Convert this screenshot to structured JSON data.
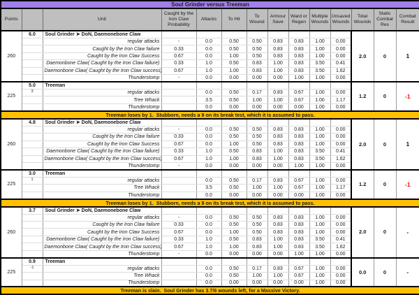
{
  "title": "Soul Grinder versus Treeman",
  "columns": [
    "Points",
    "",
    "Unit",
    "Caught by the Iron Claw Probability",
    "Attacks",
    "To Hit",
    "To Wound",
    "Armour Save",
    "Ward or Regen",
    "Multiple Wounds",
    "Unsaved Wounds",
    "Total Wounds",
    "Static Combat Res",
    "Combat Result"
  ],
  "colors": {
    "title_bg": "#a07fe8",
    "header_bg": "#bfbfbf",
    "banner_bg": "#ffc000",
    "negative": "#ff0000"
  },
  "rounds": [
    {
      "blocks": [
        {
          "points": "260",
          "expected_wounds": "6.0",
          "unit": "Soul Grinder ➤ DoN, Daemonebone Claw",
          "rows": [
            {
              "label": "regular attacks",
              "prob": "-",
              "values": [
                "0.0",
                "0.50",
                "0.50",
                "0.83",
                "0.83",
                "1.00",
                "0.00"
              ]
            },
            {
              "label": "Caught by the Iron Claw failure",
              "prob": "0.33",
              "values": [
                "0.0",
                "0.50",
                "0.50",
                "0.83",
                "0.83",
                "1.00",
                "0.00"
              ]
            },
            {
              "label": "Caught by the Iron Claw Success",
              "prob": "0.67",
              "values": [
                "0.0",
                "1.00",
                "0.50",
                "0.83",
                "0.83",
                "1.00",
                "0.00"
              ]
            },
            {
              "label": "Daemonbone Claw( Caught by the Iron Claw failure)",
              "prob": "0.33",
              "values": [
                "1.0",
                "0.50",
                "0.83",
                "1.00",
                "0.83",
                "3.50",
                "0.41"
              ]
            },
            {
              "label": "Daemonbone Claw( Caught by the Iron Claw success)",
              "prob": "0.67",
              "values": [
                "1.0",
                "1.00",
                "0.83",
                "1.00",
                "0.83",
                "3.50",
                "1.62"
              ]
            },
            {
              "label": "Thunderstomp",
              "prob": "-",
              "values": [
                "0.0",
                "0.00",
                "0.00",
                "0.00",
                "1.00",
                "1.00",
                "0.00"
              ]
            }
          ],
          "total_wounds": "2.0",
          "static_res": "0",
          "combat_result": "1",
          "result_negative": false
        },
        {
          "points": "225",
          "expected_wounds": "5.0",
          "unit": "Treeman",
          "rows": [
            {
              "label": "regular attacks",
              "note": "3",
              "values": [
                "0.0",
                "0.50",
                "0.17",
                "0.83",
                "0.67",
                "1.00",
                "0.00"
              ]
            },
            {
              "label": "Tree Whack",
              "values": [
                "3.5",
                "0.50",
                "1.00",
                "1.00",
                "0.67",
                "1.00",
                "1.17"
              ]
            },
            {
              "label": "Thunderstomp",
              "values": [
                "0.0",
                "0.00",
                "0.00",
                "0.00",
                "0.00",
                "1.00",
                "0.00"
              ]
            }
          ],
          "total_wounds": "1.2",
          "static_res": "0",
          "combat_result": "-1",
          "result_negative": true
        }
      ],
      "banner": "Treeman loses by 1.  Stubborn, needs a 9 on its break test, which it is assumed to pass."
    },
    {
      "blocks": [
        {
          "points": "260",
          "expected_wounds": "4.8",
          "unit": "Soul Grinder ➤ DoN, Daemonebone Claw",
          "rows": [
            {
              "label": "regular attacks",
              "prob": "-",
              "values": [
                "0.0",
                "0.50",
                "0.50",
                "0.83",
                "0.83",
                "1.00",
                "0.00"
              ]
            },
            {
              "label": "Caught by the Iron Claw failure",
              "prob": "0.33",
              "values": [
                "0.0",
                "0.50",
                "0.50",
                "0.83",
                "0.83",
                "1.00",
                "0.00"
              ]
            },
            {
              "label": "Caught by the Iron Claw Success",
              "prob": "0.67",
              "values": [
                "0.0",
                "1.00",
                "0.50",
                "0.83",
                "0.83",
                "1.00",
                "0.00"
              ]
            },
            {
              "label": "Daemonbone Claw( Caught by the Iron Claw failure)",
              "prob": "0.33",
              "values": [
                "1.0",
                "0.50",
                "0.83",
                "1.00",
                "0.83",
                "3.50",
                "0.41"
              ]
            },
            {
              "label": "Daemonbone Claw( Caught by the Iron Claw success)",
              "prob": "0.67",
              "values": [
                "1.0",
                "1.00",
                "0.83",
                "1.00",
                "0.83",
                "3.50",
                "1.62"
              ]
            },
            {
              "label": "Thunderstomp",
              "prob": "-",
              "values": [
                "0.0",
                "0.00",
                "0.00",
                "0.00",
                "1.00",
                "1.00",
                "0.00"
              ]
            }
          ],
          "total_wounds": "2.0",
          "static_res": "0",
          "combat_result": "1",
          "result_negative": false
        },
        {
          "points": "225",
          "expected_wounds": "3.0",
          "unit": "Treeman",
          "rows": [
            {
              "label": "regular attacks",
              "note": "1",
              "values": [
                "0.0",
                "0.50",
                "0.17",
                "0.83",
                "0.67",
                "1.00",
                "0.00"
              ]
            },
            {
              "label": "Tree Whack",
              "values": [
                "3.5",
                "0.50",
                "1.00",
                "1.00",
                "0.67",
                "1.00",
                "1.17"
              ]
            },
            {
              "label": "Thunderstomp",
              "values": [
                "0.0",
                "0.00",
                "0.00",
                "0.00",
                "0.00",
                "1.00",
                "0.00"
              ]
            }
          ],
          "total_wounds": "1.2",
          "static_res": "0",
          "combat_result": "-1",
          "result_negative": true
        }
      ],
      "banner": "Treeman loses by 1.  Stubborn, needs a 9 on its break test, which it is assumed to pass."
    },
    {
      "blocks": [
        {
          "points": "260",
          "expected_wounds": "3.7",
          "unit": "Soul Grinder ➤ DoN, Daemonebone Claw",
          "rows": [
            {
              "label": "regular attacks",
              "prob": "-",
              "values": [
                "0.0",
                "0.50",
                "0.50",
                "0.83",
                "0.83",
                "1.00",
                "0.00"
              ]
            },
            {
              "label": "Caught by the Iron Claw failure",
              "prob": "0.33",
              "values": [
                "0.0",
                "0.50",
                "0.50",
                "0.83",
                "0.83",
                "1.00",
                "0.00"
              ]
            },
            {
              "label": "Caught by the Iron Claw Success",
              "prob": "0.67",
              "values": [
                "0.0",
                "1.00",
                "0.50",
                "0.83",
                "0.83",
                "1.00",
                "0.00"
              ]
            },
            {
              "label": "Daemonbone Claw( Caught by the Iron Claw failure)",
              "prob": "0.33",
              "values": [
                "1.0",
                "0.50",
                "0.83",
                "1.00",
                "0.83",
                "3.50",
                "0.41"
              ]
            },
            {
              "label": "Daemonbone Claw( Caught by the Iron Claw success)",
              "prob": "0.67",
              "values": [
                "1.0",
                "1.00",
                "0.83",
                "1.00",
                "0.83",
                "3.50",
                "1.62"
              ]
            },
            {
              "label": "Thunderstomp",
              "prob": "-",
              "values": [
                "0.0",
                "0.00",
                "0.00",
                "0.00",
                "1.00",
                "1.00",
                "0.00"
              ]
            }
          ],
          "total_wounds": "2.0",
          "static_res": "0",
          "combat_result": "-",
          "result_negative": false
        },
        {
          "points": "225",
          "expected_wounds": "0.9",
          "unit": "Treeman",
          "rows": [
            {
              "label": "regular attacks",
              "note": "-1",
              "values": [
                "0.0",
                "0.50",
                "0.17",
                "0.83",
                "0.67",
                "1.00",
                "0.00"
              ]
            },
            {
              "label": "Tree Whack",
              "values": [
                "0.0",
                "0.50",
                "1.00",
                "1.00",
                "0.67",
                "1.00",
                "0.00"
              ]
            },
            {
              "label": "Thunderstomp",
              "values": [
                "0.0",
                "0.00",
                "0.00",
                "0.00",
                "0.00",
                "1.00",
                "0.00"
              ]
            }
          ],
          "total_wounds": "0.0",
          "static_res": "0",
          "combat_result": "-",
          "result_negative": false
        }
      ],
      "banner": "Treeman is slain.  Soul Grinder has 3.7/6 wounds left, for a Massive Victory."
    }
  ]
}
